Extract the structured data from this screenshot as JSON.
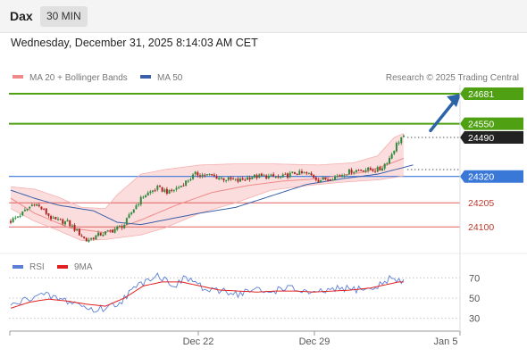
{
  "header": {
    "title": "Dax",
    "timeframe": "30 MIN"
  },
  "timestamp": "Wednesday, December 31, 2025 8:14:03 AM CET",
  "legend": {
    "items": [
      {
        "label": "MA 20 + Bollinger Bands",
        "color": "#f08a8a"
      },
      {
        "label": "MA 50",
        "color": "#3a5fa8"
      }
    ],
    "credit": "Research © 2025 Trading Central"
  },
  "rsi_legend": {
    "items": [
      {
        "label": "RSI",
        "color": "#5b7fd6"
      },
      {
        "label": "9MA",
        "color": "#e02020"
      }
    ]
  },
  "levels": [
    {
      "value": 24681,
      "label": "24681",
      "kind": "target"
    },
    {
      "value": 24550,
      "label": "24550",
      "kind": "resistance"
    },
    {
      "value": 24490,
      "label": "24490",
      "kind": "last"
    },
    {
      "value": 24320,
      "label": "24320",
      "kind": "pivot"
    },
    {
      "value": 24205,
      "label": "24205",
      "kind": "support"
    },
    {
      "value": 24100,
      "label": "24100",
      "kind": "support"
    }
  ],
  "colors": {
    "up": "#2e8b3e",
    "down": "#b22222",
    "target": "#4fa012",
    "pivot": "#3a78d8",
    "support": "#e06060",
    "last": "#222222",
    "band": "#fbd2d2",
    "arrow": "#2d64a8"
  },
  "x_axis": {
    "ticks": [
      "Dec 22",
      "Dec 29",
      "Jan 5"
    ]
  },
  "rsi_axis": {
    "ticks": [
      "70",
      "50",
      "30"
    ]
  },
  "chart_data": [
    {
      "type": "candlestick",
      "title": "",
      "ylim": [
        23980,
        24720
      ],
      "series": [
        {
          "name": "MA 20 + Bollinger Bands",
          "middle_anchors": [
            [
              0,
              24225
            ],
            [
              10,
              24160
            ],
            [
              25,
              24095
            ],
            [
              40,
              24075
            ],
            [
              55,
              24130
            ],
            [
              70,
              24195
            ],
            [
              85,
              24250
            ],
            [
              100,
              24280
            ],
            [
              115,
              24300
            ],
            [
              130,
              24310
            ],
            [
              140,
              24325
            ],
            [
              150,
              24340
            ],
            [
              160,
              24375
            ],
            [
              170,
              24415
            ]
          ],
          "upper_anchors": [
            [
              0,
              24275
            ],
            [
              10,
              24265
            ],
            [
              20,
              24230
            ],
            [
              30,
              24185
            ],
            [
              40,
              24180
            ],
            [
              45,
              24240
            ],
            [
              55,
              24330
            ],
            [
              65,
              24350
            ],
            [
              80,
              24370
            ],
            [
              95,
              24375
            ],
            [
              110,
              24375
            ],
            [
              130,
              24370
            ],
            [
              145,
              24380
            ],
            [
              155,
              24410
            ],
            [
              162,
              24490
            ],
            [
              170,
              24525
            ]
          ],
          "lower_anchors": [
            [
              0,
              24180
            ],
            [
              10,
              24125
            ],
            [
              20,
              24085
            ],
            [
              30,
              24040
            ],
            [
              40,
              24045
            ],
            [
              55,
              24065
            ],
            [
              65,
              24095
            ],
            [
              80,
              24160
            ],
            [
              95,
              24205
            ],
            [
              110,
              24260
            ],
            [
              125,
              24280
            ],
            [
              140,
              24295
            ],
            [
              155,
              24305
            ],
            [
              165,
              24320
            ],
            [
              170,
              24340
            ]
          ]
        },
        {
          "name": "MA 50",
          "anchors": [
            [
              0,
              24260
            ],
            [
              10,
              24225
            ],
            [
              20,
              24195
            ],
            [
              35,
              24170
            ],
            [
              45,
              24120
            ],
            [
              55,
              24110
            ],
            [
              65,
              24130
            ],
            [
              80,
              24160
            ],
            [
              95,
              24185
            ],
            [
              110,
              24235
            ],
            [
              125,
              24285
            ],
            [
              140,
              24310
            ],
            [
              155,
              24330
            ],
            [
              170,
              24370
            ]
          ]
        },
        {
          "name": "price",
          "anchors": [
            [
              0,
              24125
            ],
            [
              5,
              24160
            ],
            [
              10,
              24205
            ],
            [
              14,
              24170
            ],
            [
              18,
              24130
            ],
            [
              24,
              24120
            ],
            [
              28,
              24080
            ],
            [
              32,
              24040
            ],
            [
              37,
              24065
            ],
            [
              42,
              24080
            ],
            [
              48,
              24110
            ],
            [
              52,
              24180
            ],
            [
              56,
              24235
            ],
            [
              62,
              24270
            ],
            [
              67,
              24250
            ],
            [
              72,
              24280
            ],
            [
              78,
              24330
            ],
            [
              84,
              24325
            ],
            [
              90,
              24310
            ],
            [
              96,
              24300
            ],
            [
              102,
              24320
            ],
            [
              108,
              24320
            ],
            [
              114,
              24315
            ],
            [
              120,
              24335
            ],
            [
              126,
              24330
            ],
            [
              130,
              24305
            ],
            [
              134,
              24310
            ],
            [
              139,
              24325
            ],
            [
              144,
              24345
            ],
            [
              150,
              24350
            ],
            [
              156,
              24350
            ],
            [
              160,
              24400
            ],
            [
              163,
              24460
            ],
            [
              165,
              24490
            ]
          ]
        }
      ],
      "last_value": 24490,
      "target": 24681
    },
    {
      "type": "line",
      "title": "",
      "ylim": [
        20,
        80
      ],
      "series": [
        {
          "name": "RSI",
          "anchors": [
            [
              0,
              42
            ],
            [
              6,
              48
            ],
            [
              10,
              53
            ],
            [
              16,
              52
            ],
            [
              22,
              48
            ],
            [
              28,
              45
            ],
            [
              32,
              40
            ],
            [
              36,
              38
            ],
            [
              42,
              42
            ],
            [
              46,
              46
            ],
            [
              50,
              55
            ],
            [
              54,
              62
            ],
            [
              58,
              70
            ],
            [
              62,
              73
            ],
            [
              66,
              67
            ],
            [
              70,
              63
            ],
            [
              74,
              70
            ],
            [
              78,
              66
            ],
            [
              82,
              58
            ],
            [
              86,
              56
            ],
            [
              90,
              58
            ],
            [
              96,
              54
            ],
            [
              100,
              57
            ],
            [
              104,
              58
            ],
            [
              108,
              55
            ],
            [
              112,
              58
            ],
            [
              116,
              61
            ],
            [
              120,
              58
            ],
            [
              124,
              57
            ],
            [
              128,
              53
            ],
            [
              132,
              57
            ],
            [
              136,
              57
            ],
            [
              140,
              60
            ],
            [
              144,
              58
            ],
            [
              148,
              60
            ],
            [
              152,
              58
            ],
            [
              156,
              63
            ],
            [
              160,
              70
            ],
            [
              164,
              66
            ],
            [
              168,
              68
            ]
          ]
        },
        {
          "name": "9MA",
          "anchors": [
            [
              0,
              40
            ],
            [
              8,
              46
            ],
            [
              16,
              49
            ],
            [
              24,
              47
            ],
            [
              32,
              44
            ],
            [
              40,
              42
            ],
            [
              48,
              50
            ],
            [
              56,
              62
            ],
            [
              64,
              66
            ],
            [
              72,
              66
            ],
            [
              80,
              62
            ],
            [
              88,
              58
            ],
            [
              96,
              57
            ],
            [
              104,
              56
            ],
            [
              112,
              57
            ],
            [
              120,
              57
            ],
            [
              128,
              56
            ],
            [
              136,
              57
            ],
            [
              144,
              58
            ],
            [
              152,
              60
            ],
            [
              160,
              64
            ],
            [
              164,
              66
            ],
            [
              168,
              66
            ]
          ]
        }
      ],
      "levels": [
        70,
        50,
        30
      ]
    }
  ]
}
